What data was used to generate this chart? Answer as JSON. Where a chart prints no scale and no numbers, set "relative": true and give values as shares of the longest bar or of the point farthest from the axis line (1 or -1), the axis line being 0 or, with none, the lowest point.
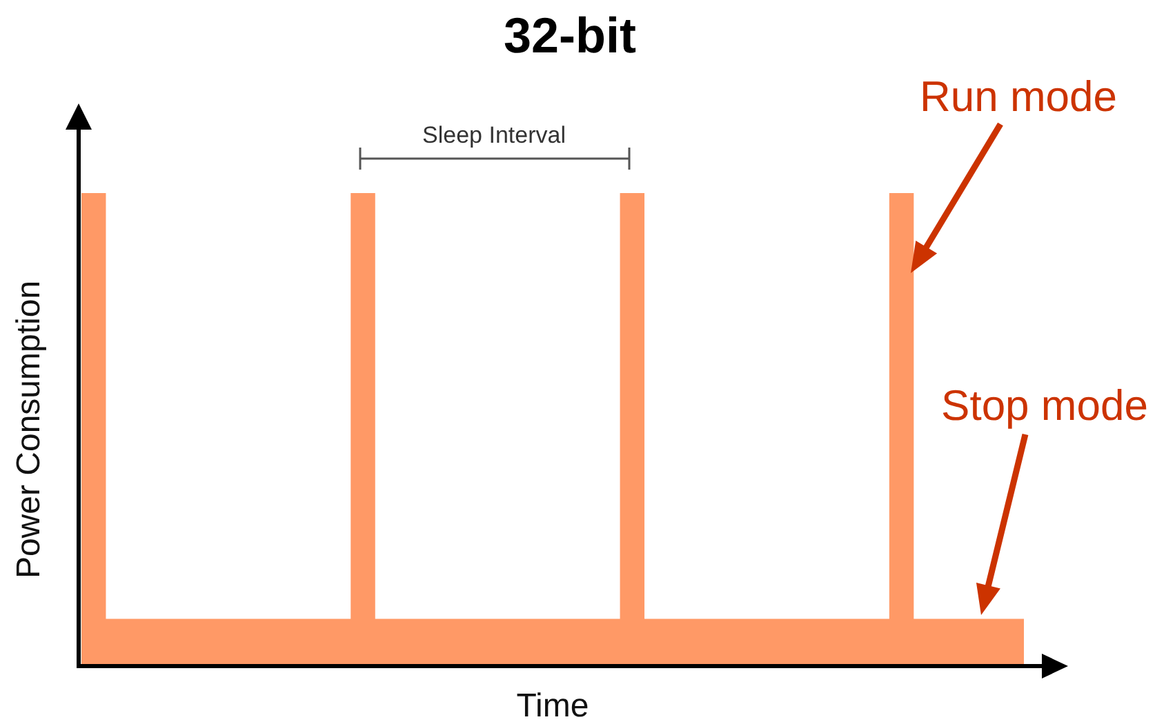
{
  "chart_data": {
    "type": "area",
    "title": "32-bit",
    "xlabel": "Time",
    "ylabel": "Power Consumption",
    "relative": true,
    "tick_labels": false,
    "categories": [
      null,
      null,
      null,
      null,
      null,
      null,
      null,
      null,
      null,
      null,
      null,
      null,
      null,
      null,
      null,
      null,
      null,
      null,
      null,
      null,
      null,
      null,
      null,
      null,
      null,
      null,
      null,
      null,
      null,
      null,
      null,
      null,
      null,
      null,
      null,
      null,
      null,
      null,
      null,
      null,
      null,
      null,
      null,
      null,
      null,
      null,
      null,
      null,
      null,
      null,
      null,
      null,
      null,
      null,
      null,
      null,
      null,
      null,
      null,
      null,
      null,
      null,
      null,
      null,
      null,
      null,
      null,
      null,
      null,
      null,
      null,
      null,
      null,
      null,
      null,
      null,
      null,
      null
    ],
    "color": "#ff9966",
    "values": [
      1,
      1,
      0.1,
      0.1,
      0.1,
      0.1,
      0.1,
      0.1,
      0.1,
      0.1,
      0.1,
      0.1,
      0.1,
      0.1,
      0.1,
      0.1,
      0.1,
      0.1,
      0.1,
      0.1,
      0.1,
      0.1,
      1,
      1,
      0.1,
      0.1,
      0.1,
      0.1,
      0.1,
      0.1,
      0.1,
      0.1,
      0.1,
      0.1,
      0.1,
      0.1,
      0.1,
      0.1,
      0.1,
      0.1,
      0.1,
      0.1,
      0.1,
      0.1,
      1,
      1,
      0.1,
      0.1,
      0.1,
      0.1,
      0.1,
      0.1,
      0.1,
      0.1,
      0.1,
      0.1,
      0.1,
      0.1,
      0.1,
      0.1,
      0.1,
      0.1,
      0.1,
      0.1,
      0.1,
      0.1,
      1,
      1,
      0.1,
      0.1,
      0.1,
      0.1,
      0.1,
      0.1,
      0.1,
      0.1,
      0.1,
      0.1
    ],
    "annotations": [
      "Sleep Interval",
      "Run mode",
      "Stop mode"
    ]
  }
}
